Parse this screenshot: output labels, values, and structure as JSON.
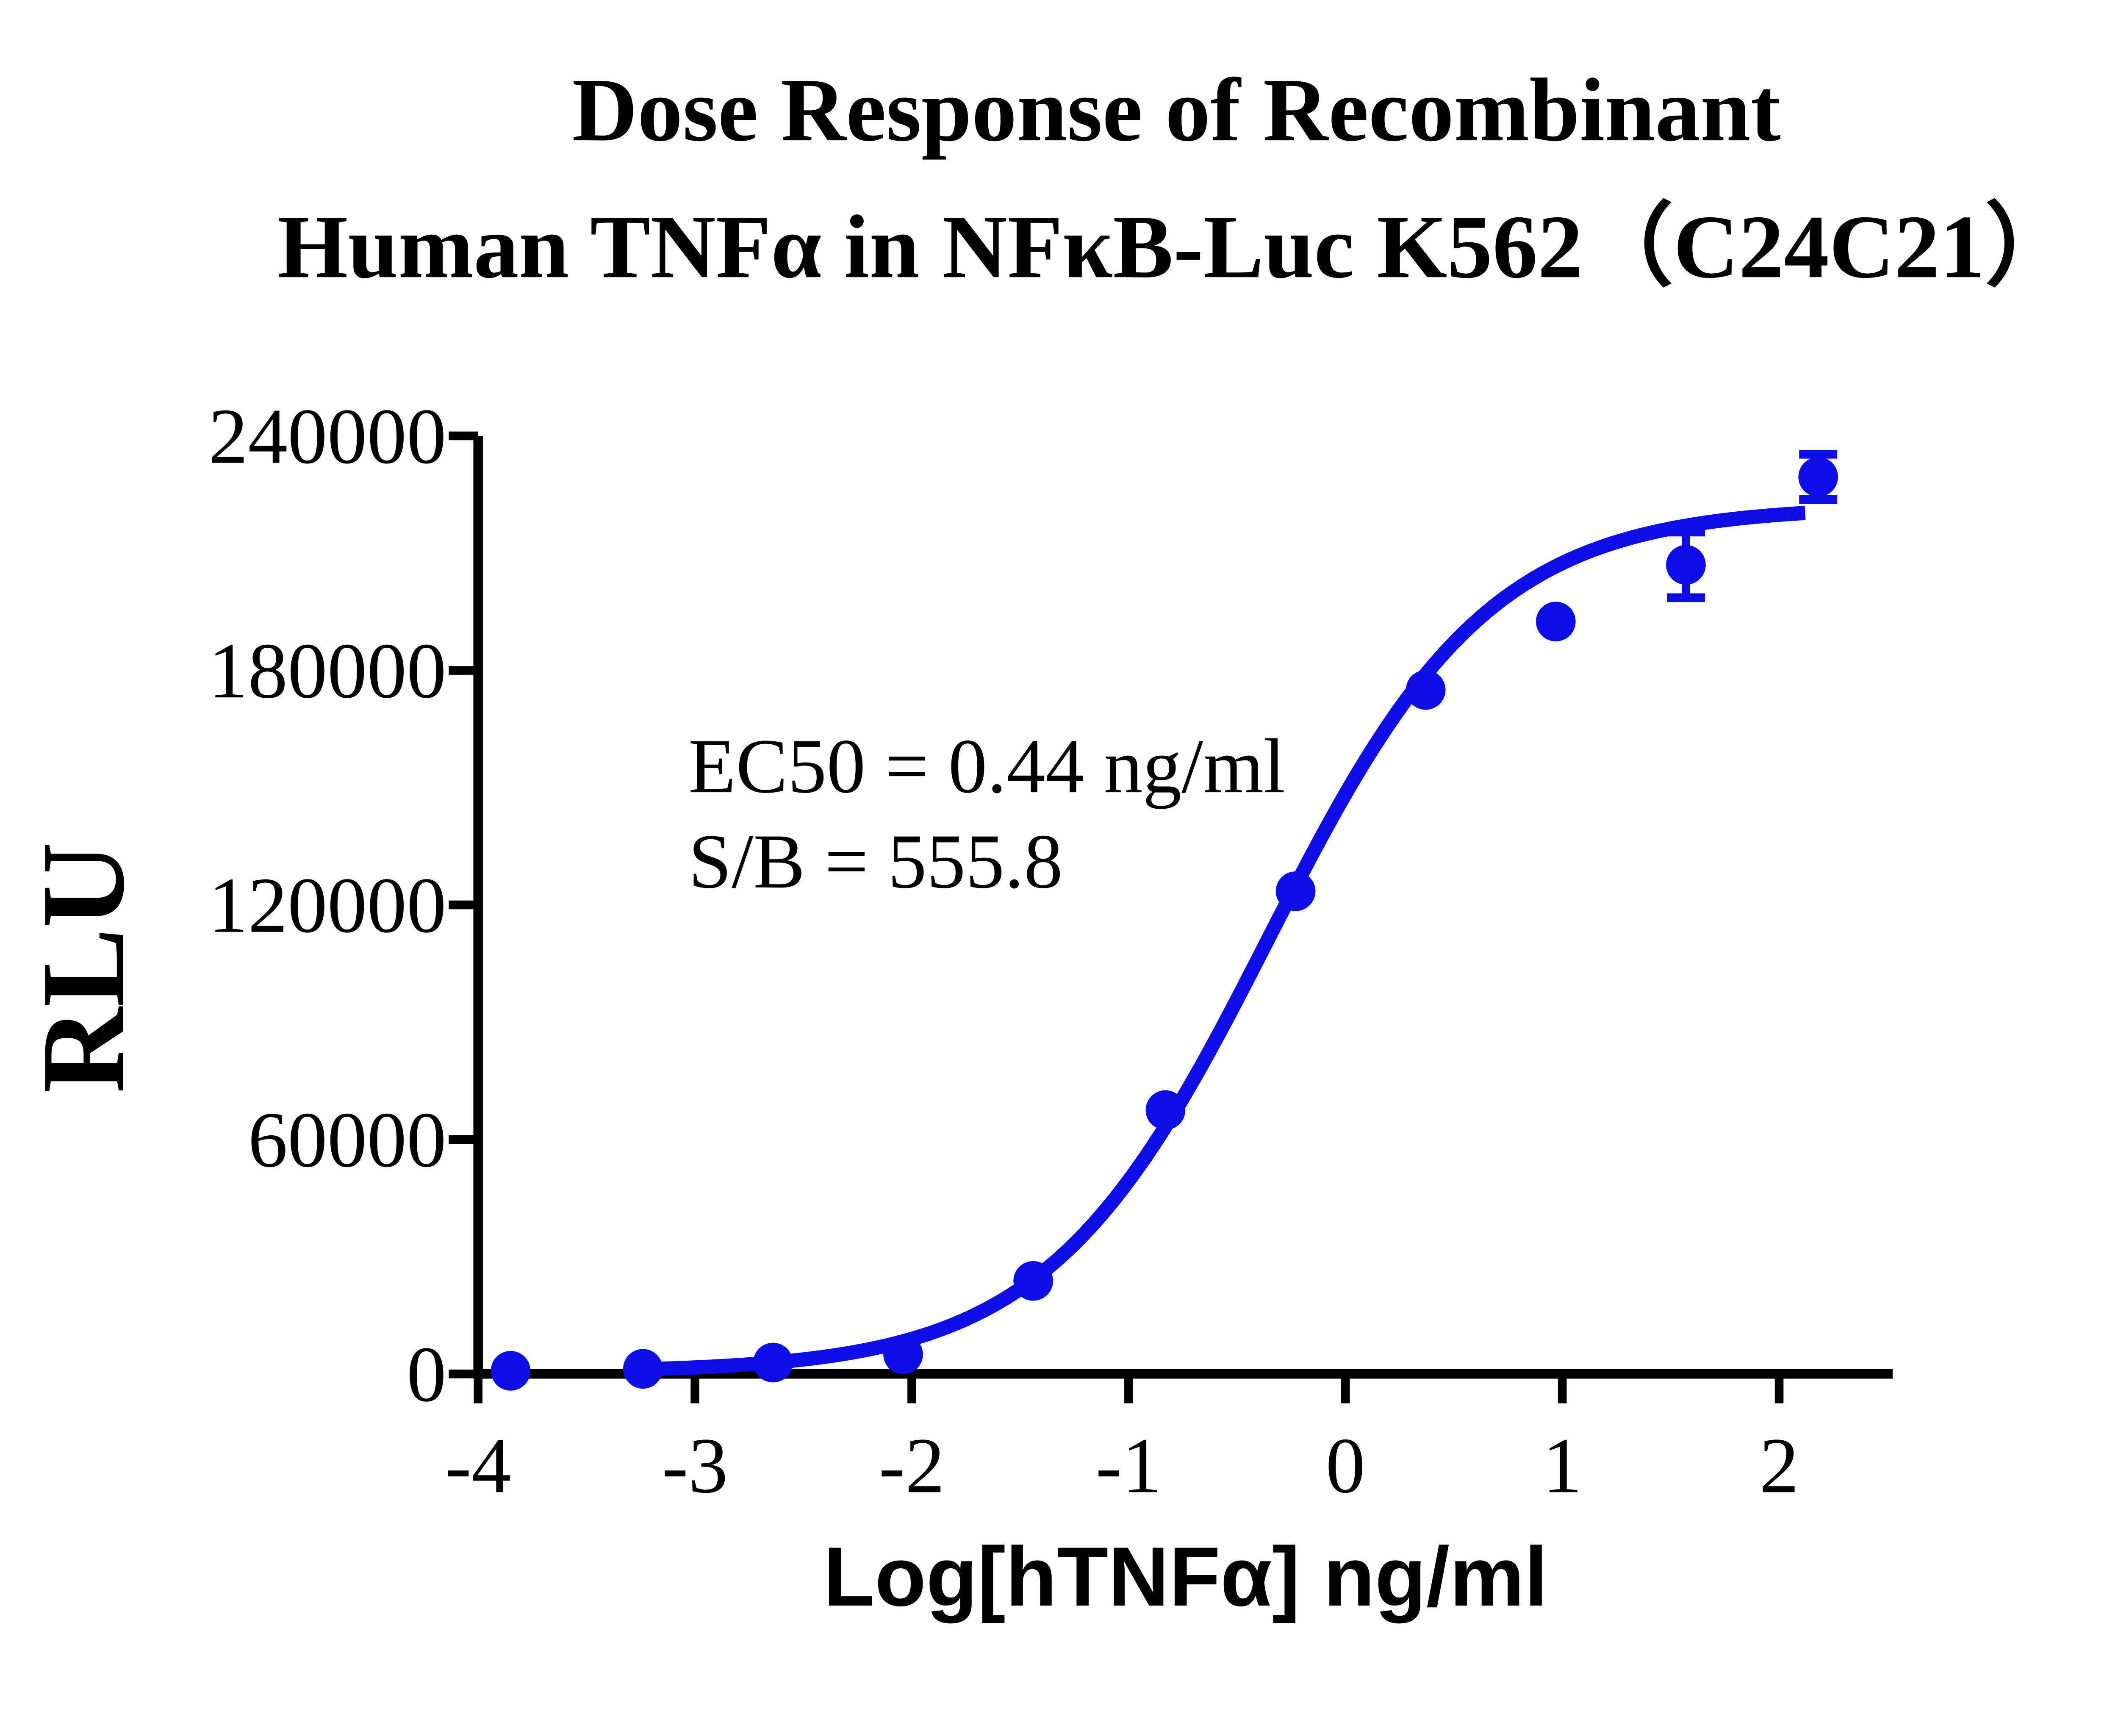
{
  "title": {
    "line1": "Dose Response of Recombinant",
    "line2": "Human TNFα in NFκB-Luc K562（C24C21）"
  },
  "annotation": {
    "ec50_text": "EC50 = 0.44 ng/ml",
    "sb_text": "S/B = 555.8",
    "ec50_ng_ml": 0.44,
    "signal_to_background": 555.8
  },
  "axes": {
    "x": {
      "label": "Log[hTNFα] ng/ml",
      "ticks": [
        -4,
        -3,
        -2,
        -1,
        0,
        1,
        2
      ]
    },
    "y": {
      "label": "RLU",
      "ticks": [
        0,
        60000,
        120000,
        180000,
        240000
      ]
    }
  },
  "colors": {
    "series": "#0d0de8",
    "axis": "#000000",
    "background": "#ffffff",
    "text": "#000000"
  },
  "chart_data": {
    "type": "scatter",
    "title": "Dose Response of Recombinant Human TNFα in NFκB-Luc K562（C24C21）",
    "xlabel": "Log[hTNFα] ng/ml",
    "ylabel": "RLU",
    "xlim": [
      -4,
      2.52
    ],
    "ylim": [
      0,
      240000
    ],
    "grid": false,
    "legend": "none",
    "series": [
      {
        "name": "hTNFα",
        "color": "#0d0de8",
        "marker": "circle",
        "points": [
          {
            "x": -3.85,
            "y": 800
          },
          {
            "x": -3.24,
            "y": 1300
          },
          {
            "x": -2.64,
            "y": 2900
          },
          {
            "x": -2.04,
            "y": 5000
          },
          {
            "x": -1.44,
            "y": 23800
          },
          {
            "x": -0.83,
            "y": 67500
          },
          {
            "x": -0.23,
            "y": 123500
          },
          {
            "x": 0.37,
            "y": 175000
          },
          {
            "x": 0.97,
            "y": 192500
          },
          {
            "x": 1.57,
            "y": 207000,
            "err": 8400
          },
          {
            "x": 2.18,
            "y": 229500,
            "err": 5800
          }
        ]
      }
    ],
    "fit_curve": {
      "model": "four-parameter logistic",
      "bottom": 400,
      "top": 222000,
      "logEC50": -0.357,
      "hill": 0.85,
      "x_start": -3.27,
      "x_end": 2.12
    }
  }
}
